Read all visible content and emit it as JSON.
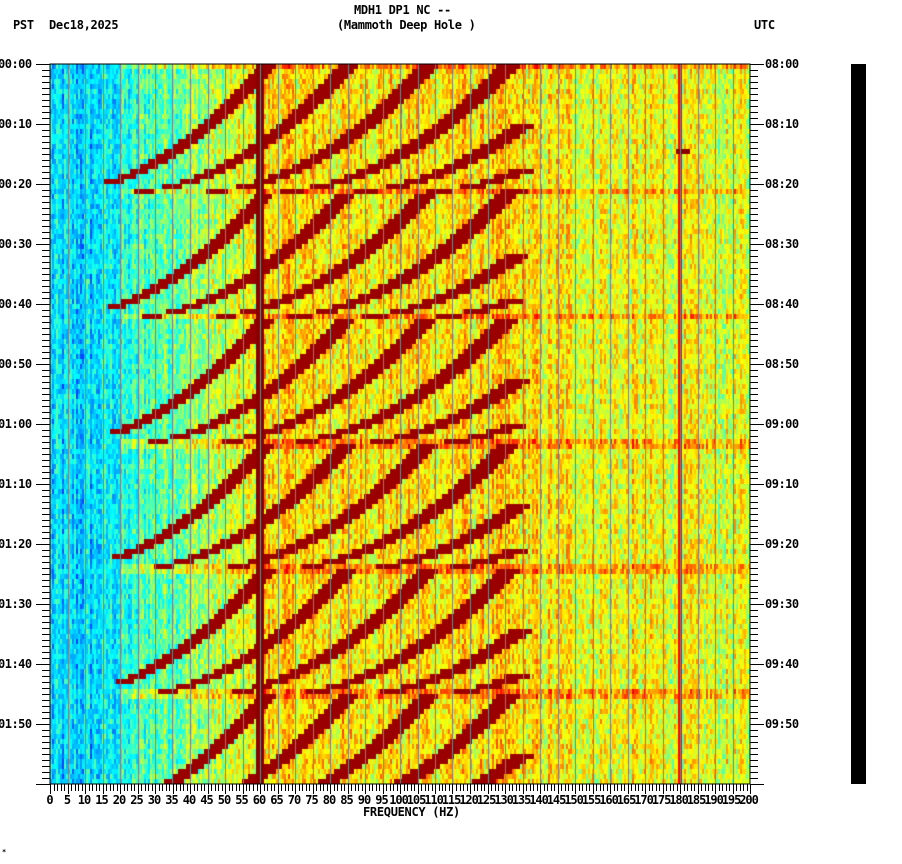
{
  "header": {
    "station_line": "MDH1 DP1 NC --",
    "site_name": "(Mammoth Deep Hole )",
    "left_timezone": "PST",
    "date": "Dec18,2025",
    "right_timezone": "UTC"
  },
  "footer_mark": "*",
  "chart_data": {
    "type": "heatmap",
    "title": "MDH1 DP1 NC -- (Mammoth Deep Hole )",
    "xlabel": "FREQUENCY (HZ)",
    "ylabel_left": "PST",
    "ylabel_right": "UTC",
    "date": "Dec18,2025",
    "xlim": [
      0,
      200
    ],
    "x_ticks": [
      "0",
      "5",
      "10",
      "15",
      "20",
      "25",
      "30",
      "35",
      "40",
      "45",
      "50",
      "55",
      "60",
      "65",
      "70",
      "75",
      "80",
      "85",
      "90",
      "95",
      "100",
      "105",
      "110",
      "115",
      "120",
      "125",
      "130",
      "135",
      "140",
      "145",
      "150",
      "155",
      "160",
      "165",
      "170",
      "175",
      "180",
      "185",
      "190",
      "195",
      "200"
    ],
    "y_ticks_left": [
      "00:00",
      "00:10",
      "00:20",
      "00:30",
      "00:40",
      "00:50",
      "01:00",
      "01:10",
      "01:20",
      "01:30",
      "01:40",
      "01:50"
    ],
    "y_ticks_right": [
      "08:00",
      "08:10",
      "08:20",
      "08:30",
      "08:40",
      "08:50",
      "09:00",
      "09:10",
      "09:20",
      "09:30",
      "09:40",
      "09:50"
    ],
    "time_span_minutes": 120,
    "colormap": [
      "#0000ff",
      "#00a0ff",
      "#00ffff",
      "#80ff80",
      "#ffff00",
      "#ff8000",
      "#ff0000",
      "#800000"
    ],
    "grid": {
      "vertical_every_hz": 5,
      "color": "#808080"
    },
    "features": {
      "power_line_hz": 60,
      "secondary_line_hz": 180,
      "repeating_sweep_cycle_start_minutes": [
        0,
        21,
        42,
        63,
        84,
        105
      ],
      "sweep_description": "Curved harmonic tones rising in frequency over ~20 min, repeating every ~21 minutes",
      "background_low_freq_hz": [
        0,
        25
      ],
      "background_high_freq_hz": [
        130,
        200
      ],
      "isolated_spot": {
        "hz": 181,
        "minute": 14
      }
    }
  }
}
